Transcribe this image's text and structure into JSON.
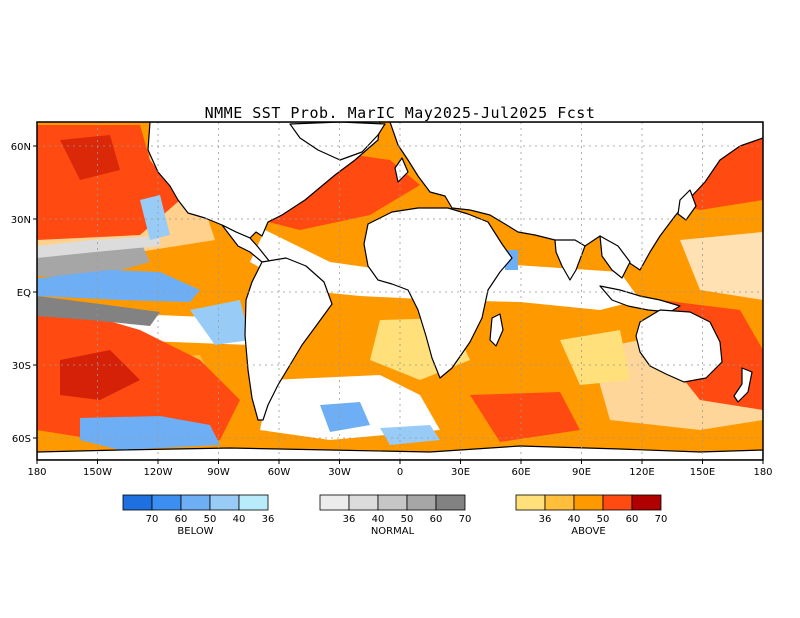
{
  "title": "NMME SST Prob. MarIC  May2025-Jul2025 Fcst",
  "map": {
    "lat_ticks": [
      "60N",
      "30N",
      "EQ",
      "30S",
      "60S"
    ],
    "lon_ticks": [
      "180",
      "150W",
      "120W",
      "90W",
      "60W",
      "30W",
      "0",
      "30E",
      "60E",
      "90E",
      "120E",
      "150E",
      "180"
    ],
    "colors": {
      "ocean_default": "#ffffff",
      "land": "#ffffff",
      "coast": "#000000",
      "grid": "#999999"
    }
  },
  "legends": [
    {
      "name": "BELOW",
      "colors": [
        "#1e6fe0",
        "#3c8ff0",
        "#6eaef5",
        "#98ccf7",
        "#b8ecfb"
      ],
      "labels": [
        "70",
        "60",
        "50",
        "40",
        "36"
      ]
    },
    {
      "name": "NORMAL",
      "colors": [
        "#ececec",
        "#dcdcdc",
        "#c6c6c6",
        "#a6a6a6",
        "#828282"
      ],
      "labels": [
        "36",
        "40",
        "50",
        "60",
        "70"
      ]
    },
    {
      "name": "ABOVE",
      "colors": [
        "#ffe07a",
        "#ffbf3a",
        "#ff9900",
        "#ff4a12",
        "#b00000"
      ],
      "labels": [
        "36",
        "40",
        "50",
        "60",
        "70"
      ]
    }
  ]
}
